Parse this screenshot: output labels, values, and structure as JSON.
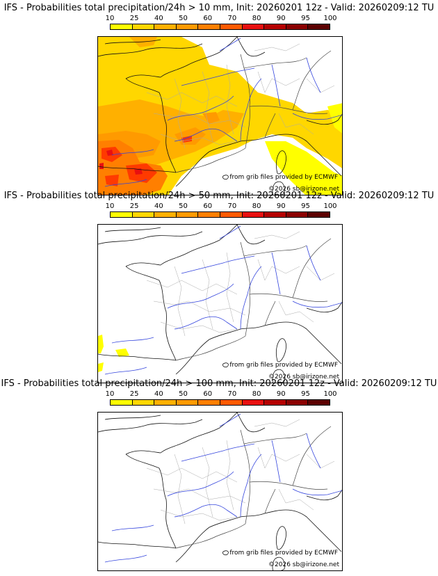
{
  "colorbar": {
    "labels": [
      "10",
      "25",
      "40",
      "50",
      "60",
      "70",
      "80",
      "90",
      "95",
      "100"
    ],
    "colors": [
      "#ffff00",
      "#ffd700",
      "#ffb000",
      "#ff9a00",
      "#ff7f00",
      "#ff5a00",
      "#e81010",
      "#b50000",
      "#8b0000",
      "#5c0000"
    ]
  },
  "credits": {
    "source": "from grib files provided by ECMWF",
    "copyright": "©2026 sb@irizone.net"
  },
  "panels": [
    {
      "title": "IFS - Probabilities total precipitation/24h > 10 mm, Init: 20260201 12z - Valid: 20260209:12 TU"
    },
    {
      "title": "IFS - Probabilities total precipitation/24h > 50 mm, Init: 20260201 12z - Valid: 20260209:12 TU"
    },
    {
      "title": "IFS - Probabilities total precipitation/24h > 100 mm, Init: 20260201 12z - Valid: 20260209:12 TU"
    }
  ]
}
